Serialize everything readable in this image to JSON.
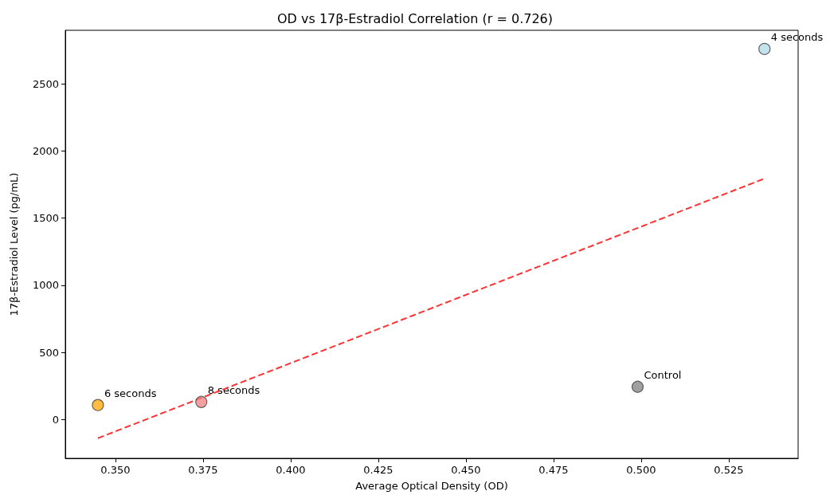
{
  "chart_data": {
    "type": "scatter",
    "title": "OD vs 17β-Estradiol Correlation (r = 0.726)",
    "xlabel": "Average Optical Density (OD)",
    "ylabel": "17β-Estradiol Level (pg/mL)",
    "xlim": [
      0.3357,
      0.5448
    ],
    "xticks": [
      {
        "value": 0.35,
        "label": "0.350"
      },
      0.375,
      {
        "value": 0.4,
        "label": "0.400"
      },
      0.425,
      {
        "value": 0.45,
        "label": "0.450"
      },
      0.475,
      {
        "value": 0.5,
        "label": "0.500"
      },
      0.525
    ],
    "ylim": [
      -290,
      2900
    ],
    "yticks": [
      0,
      500,
      1000,
      1500,
      2000,
      2500
    ],
    "marker": "circle",
    "series": [
      {
        "x": [
          0.499,
          0.5352,
          0.345,
          0.3745
        ],
        "values": [
          243,
          2761,
          107,
          130
        ],
        "colors": [
          "#808080",
          "#add8e6",
          "#ffa500",
          "#f08080"
        ]
      },
      {
        "type": "line",
        "x": [
          0.345,
          0.5352
        ],
        "values": [
          -140,
          1795
        ],
        "color": "#ff3333",
        "line_style": "dashed",
        "marker": "none"
      }
    ],
    "annotations": [
      {
        "text": "Control",
        "x": 0.499,
        "y": 243
      },
      {
        "text": "4 seconds",
        "x": 0.5352,
        "y": 2761
      },
      {
        "text": "6 seconds",
        "x": 0.345,
        "y": 107
      },
      {
        "text": "8 seconds",
        "x": 0.3745,
        "y": 130
      }
    ]
  }
}
